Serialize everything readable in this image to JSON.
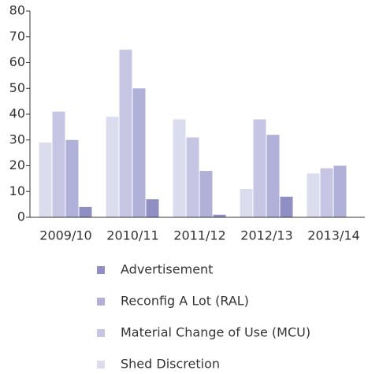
{
  "chart_data": {
    "type": "bar",
    "categories": [
      "2009/10",
      "2010/11",
      "2011/12",
      "2012/13",
      "2013/14"
    ],
    "series": [
      {
        "name": "Shed Discretion",
        "color": "#dcdcef",
        "values": [
          29,
          39,
          38,
          11,
          17
        ]
      },
      {
        "name": "Material Change of Use (MCU)",
        "color": "#c6c6e4",
        "values": [
          41,
          65,
          31,
          38,
          19
        ]
      },
      {
        "name": "Reconfig A Lot (RAL)",
        "color": "#b0b0d8",
        "values": [
          30,
          50,
          18,
          32,
          20
        ]
      },
      {
        "name": "Advertisement",
        "color": "#8f8fc4",
        "values": [
          4,
          7,
          1,
          8,
          0
        ]
      }
    ],
    "ylim": [
      0,
      80
    ],
    "yticks": [
      0,
      10,
      20,
      30,
      40,
      50,
      60,
      70,
      80
    ]
  }
}
